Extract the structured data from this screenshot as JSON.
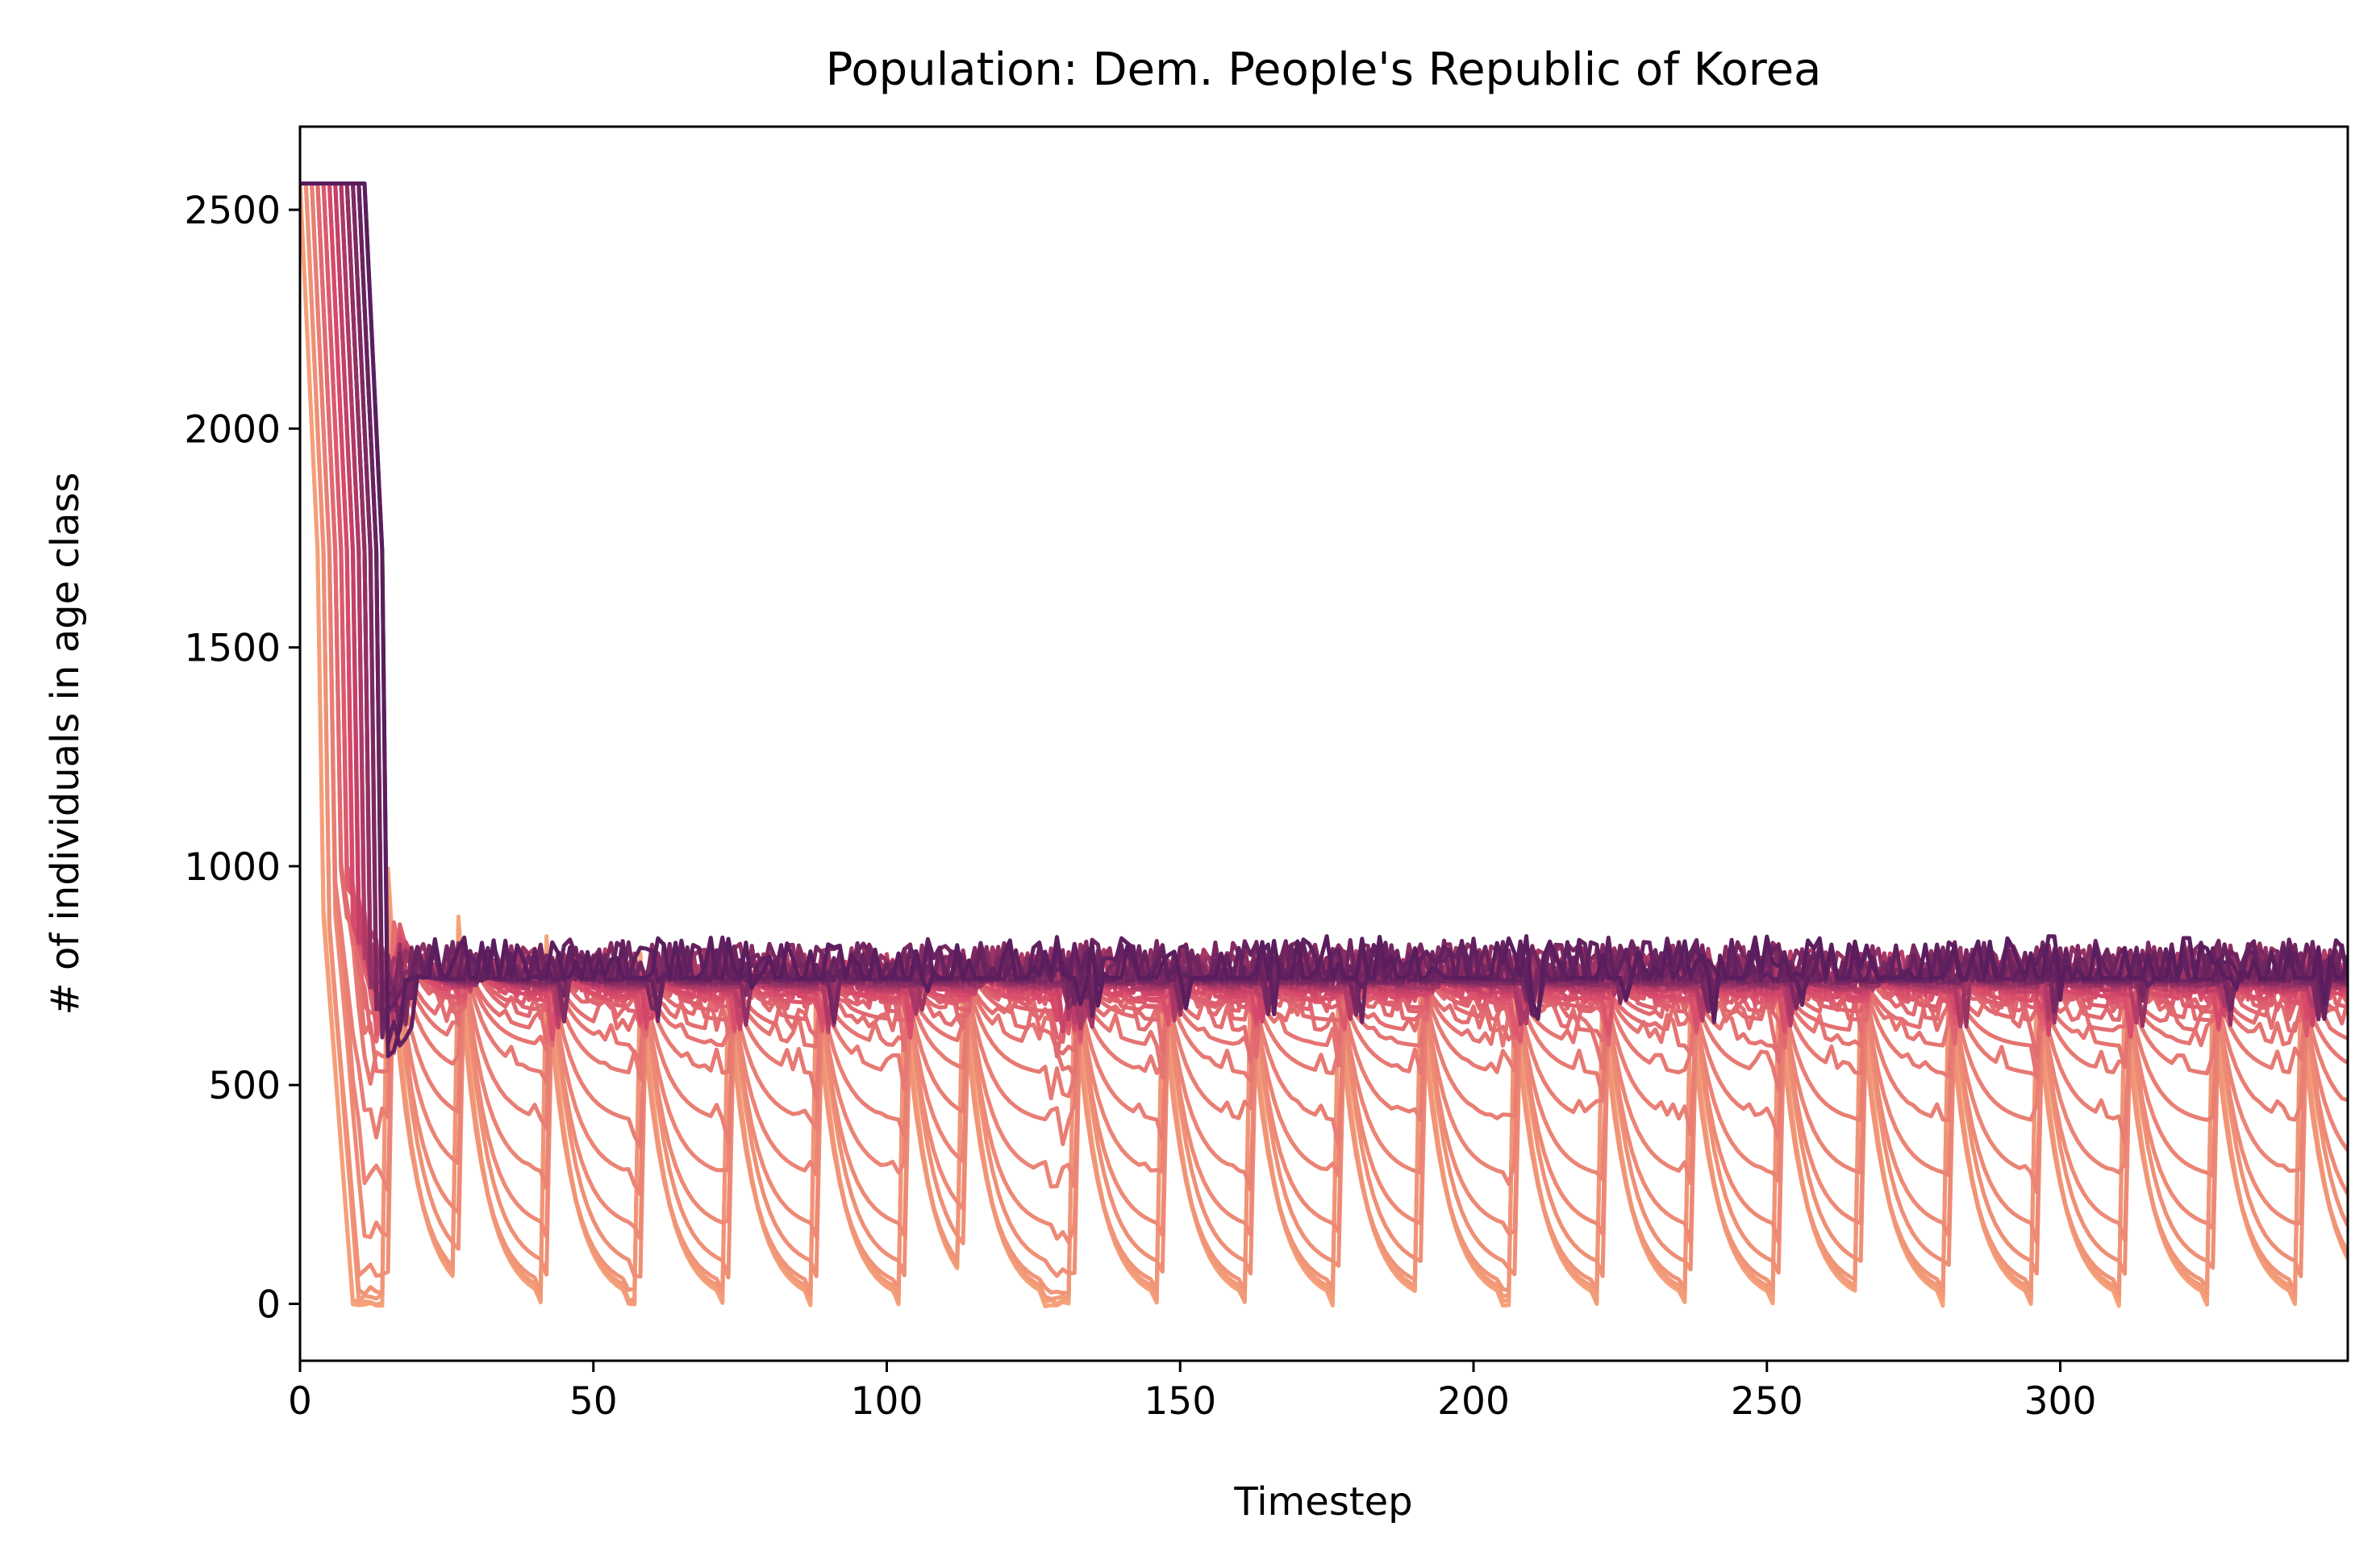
{
  "chart_data": {
    "type": "line",
    "title": "Population: Dem. People's Republic of Korea",
    "xlabel": "Timestep",
    "ylabel": "# of individuals in age class",
    "xlim": [
      0,
      349
    ],
    "ylim": [
      -130,
      2690
    ],
    "grid": false,
    "legend": "none",
    "x_ticks": [
      0,
      50,
      100,
      150,
      200,
      250,
      300
    ],
    "y_ticks": [
      0,
      500,
      1000,
      1500,
      2000,
      2500
    ],
    "x_tick_labels": [
      "0",
      "50",
      "100",
      "150",
      "200",
      "250",
      "300"
    ],
    "y_tick_labels": [
      "0",
      "500",
      "1000",
      "1500",
      "2000",
      "2500"
    ],
    "num_series": 36,
    "x_max": 349,
    "initial_plateau_value": 2560,
    "initial_plateau_end": [
      3,
      14
    ],
    "cohort_onset_interval": 5,
    "cohort_peaks": [
      {
        "x": 15,
        "value": 995
      },
      {
        "x": 27,
        "value": 885
      },
      {
        "x": 42,
        "value": 840
      },
      {
        "x": 58,
        "value": 800
      },
      {
        "x": 73,
        "value": 785
      },
      {
        "x": 88,
        "value": 775
      },
      {
        "x": 103,
        "value": 770
      },
      {
        "x": 113,
        "value": 800
      },
      {
        "x": 132,
        "value": 780
      },
      {
        "x": 147,
        "value": 790
      },
      {
        "x": 162,
        "value": 765
      },
      {
        "x": 177,
        "value": 760
      },
      {
        "x": 191,
        "value": 780
      },
      {
        "x": 207,
        "value": 760
      },
      {
        "x": 222,
        "value": 765
      },
      {
        "x": 237,
        "value": 755
      },
      {
        "x": 252,
        "value": 770
      },
      {
        "x": 266,
        "value": 790
      },
      {
        "x": 281,
        "value": 780
      },
      {
        "x": 296,
        "value": 770
      },
      {
        "x": 311,
        "value": 760
      },
      {
        "x": 326,
        "value": 770
      },
      {
        "x": 341,
        "value": 760
      }
    ],
    "steady_state_levels": [
      0,
      5,
      15,
      30,
      75,
      165,
      285,
      410,
      520,
      585,
      620,
      645,
      665,
      675,
      685,
      690,
      695,
      700,
      705,
      710,
      712,
      715,
      718,
      720,
      722,
      724,
      726,
      728,
      730,
      732,
      734,
      736,
      738,
      740,
      742,
      745
    ],
    "color_scale": {
      "young": "#f6a47a",
      "mid": "#d5466a",
      "old": "#5a1e5e"
    }
  }
}
